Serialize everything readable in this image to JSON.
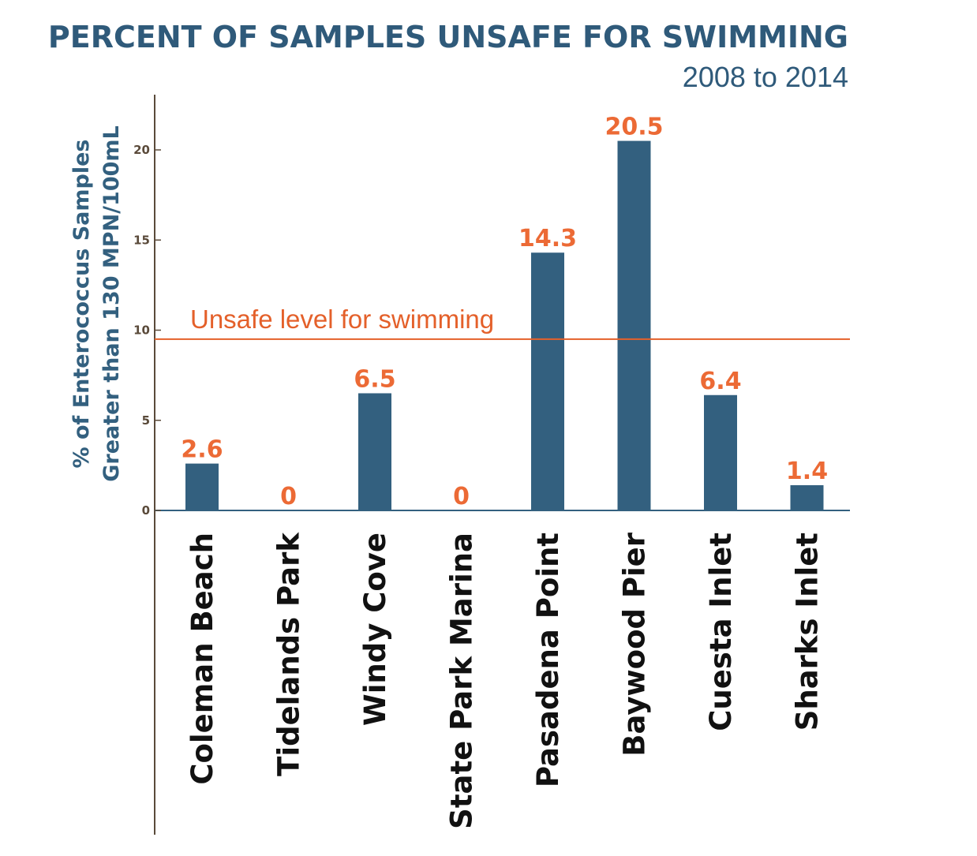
{
  "colors": {
    "bar": "#33607f",
    "value_label": "#ec6a35",
    "threshold": "#e4602a",
    "title": "#2f5a7a",
    "axis": "#5a4a3a"
  },
  "chart_data": {
    "type": "bar",
    "title": "PERCENT OF SAMPLES UNSAFE FOR SWIMMING",
    "subtitle": "2008 to 2014",
    "ylabel_line1": "% of Enterococcus Samples",
    "ylabel_line2": "Greater than 130 MPN/100mL",
    "categories": [
      "Coleman Beach",
      "Tidelands Park",
      "Windy Cove",
      "State Park Marina",
      "Pasadena Point",
      "Baywood Pier",
      "Cuesta Inlet",
      "Sharks Inlet"
    ],
    "values": [
      2.6,
      0,
      6.5,
      0,
      14.3,
      20.5,
      6.4,
      1.4
    ],
    "value_labels": [
      "2.6",
      "0",
      "6.5",
      "0",
      "14.3",
      "20.5",
      "6.4",
      "1.4"
    ],
    "yticks": [
      0,
      5,
      10,
      15,
      20
    ],
    "ylim": [
      0,
      23
    ],
    "threshold": {
      "value": 9.5,
      "label": "Unsafe level for swimming"
    },
    "grid": false,
    "legend": "none"
  }
}
